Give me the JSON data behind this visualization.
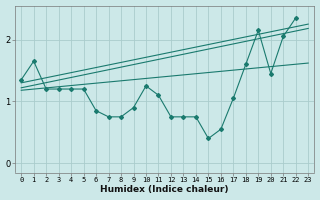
{
  "title": "",
  "xlabel": "Humidex (Indice chaleur)",
  "ylabel": "",
  "bg_color": "#cce8e8",
  "grid_color": "#aacccc",
  "line_color": "#1a7a6e",
  "x_data": [
    0,
    1,
    2,
    3,
    4,
    5,
    6,
    7,
    8,
    9,
    10,
    11,
    12,
    13,
    14,
    15,
    16,
    17,
    18,
    19,
    20,
    21,
    22,
    23
  ],
  "y_main": [
    1.35,
    1.65,
    1.2,
    1.2,
    1.2,
    1.2,
    0.85,
    0.75,
    0.75,
    0.9,
    1.25,
    1.1,
    0.75,
    0.75,
    0.75,
    0.4,
    0.55,
    1.05,
    1.6,
    2.15,
    1.45,
    2.05,
    2.35,
    null
  ],
  "trend1_x": [
    0,
    23
  ],
  "trend1_y": [
    1.3,
    2.25
  ],
  "trend2_x": [
    0,
    23
  ],
  "trend2_y": [
    1.22,
    2.18
  ],
  "trend3_x": [
    0,
    23
  ],
  "trend3_y": [
    1.18,
    1.62
  ],
  "xlim": [
    -0.5,
    23.5
  ],
  "ylim": [
    -0.15,
    2.55
  ],
  "yticks": [
    0,
    1,
    2
  ],
  "xticks": [
    0,
    1,
    2,
    3,
    4,
    5,
    6,
    7,
    8,
    9,
    10,
    11,
    12,
    13,
    14,
    15,
    16,
    17,
    18,
    19,
    20,
    21,
    22,
    23
  ],
  "xlabel_fontsize": 6.5,
  "xlabel_bold": true,
  "tick_fontsize": 5.0,
  "ytick_fontsize": 6.0
}
